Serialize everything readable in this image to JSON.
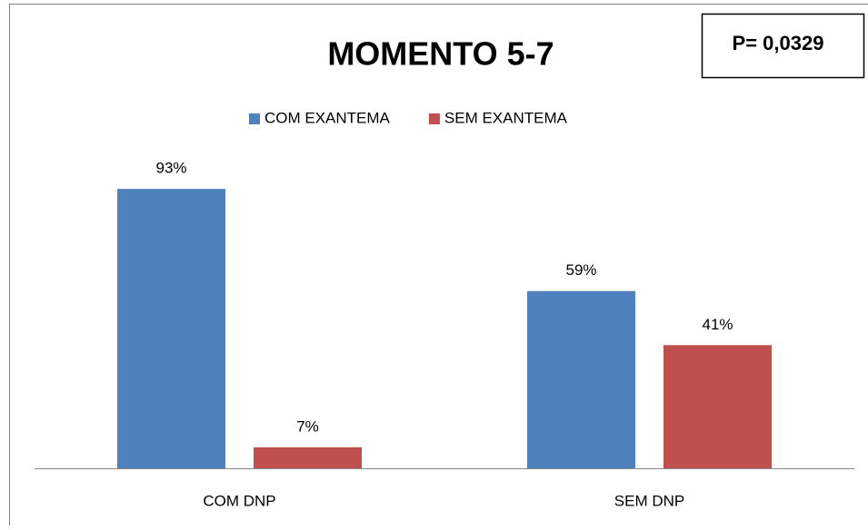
{
  "chart_data": {
    "type": "bar",
    "title": "MOMENTO 5-7",
    "annotation": "P= 0,0329",
    "legend": "top",
    "categories": [
      "COM DNP",
      "SEM DNP"
    ],
    "series": [
      {
        "name": "COM EXANTEMA",
        "color": "#4f81bd",
        "values": [
          93,
          59
        ],
        "value_labels": [
          "93%",
          "59%"
        ]
      },
      {
        "name": "SEM EXANTEMA",
        "color": "#c0504d",
        "values": [
          7,
          41
        ],
        "value_labels": [
          "7%",
          "41%"
        ]
      }
    ]
  }
}
